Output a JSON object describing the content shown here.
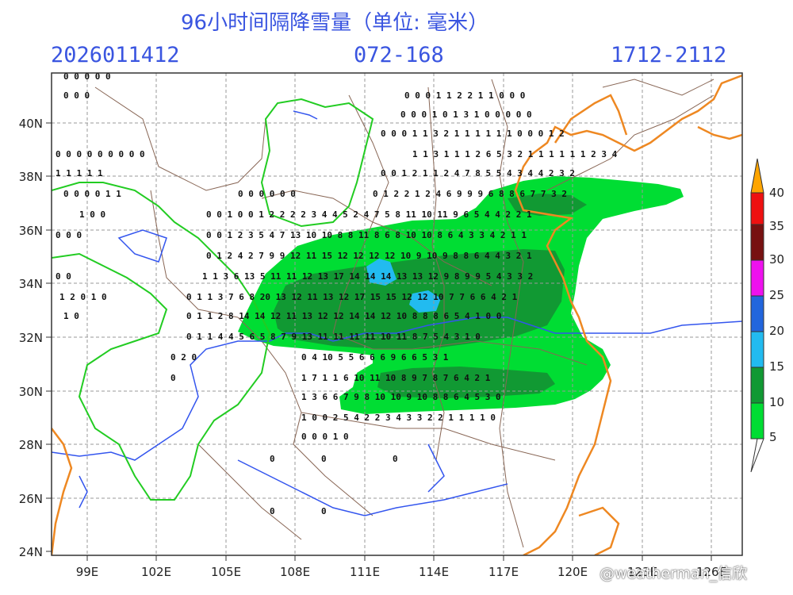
{
  "header": {
    "title": "96小时间隔降雪量（单位: 毫米）",
    "run": "2026011412",
    "forecast_hours": "072-168",
    "valid": "1712-2112"
  },
  "lat_labels": [
    "40N",
    "38N",
    "36N",
    "34N",
    "32N",
    "30N",
    "28N",
    "26N",
    "24N"
  ],
  "lon_labels": [
    "99E",
    "102E",
    "105E",
    "108E",
    "111E",
    "114E",
    "117E",
    "120E",
    "123E",
    "126E"
  ],
  "colorbar": {
    "levels": [
      "5",
      "10",
      "15",
      "20",
      "25",
      "30",
      "35",
      "40"
    ],
    "colors": [
      "#ffffff",
      "#00dd33",
      "#119933",
      "#22bbf0",
      "#2266dd",
      "#ee11ee",
      "#771111",
      "#ee1111",
      "#ffa500"
    ]
  },
  "colors": {
    "header_text": "#3a55e0",
    "coast": "#ee8822",
    "river": "#3355ee",
    "plateau": "#22cc22",
    "province": "#886655",
    "grid": "#999999"
  },
  "watermark": "@weatherman_信欣"
}
